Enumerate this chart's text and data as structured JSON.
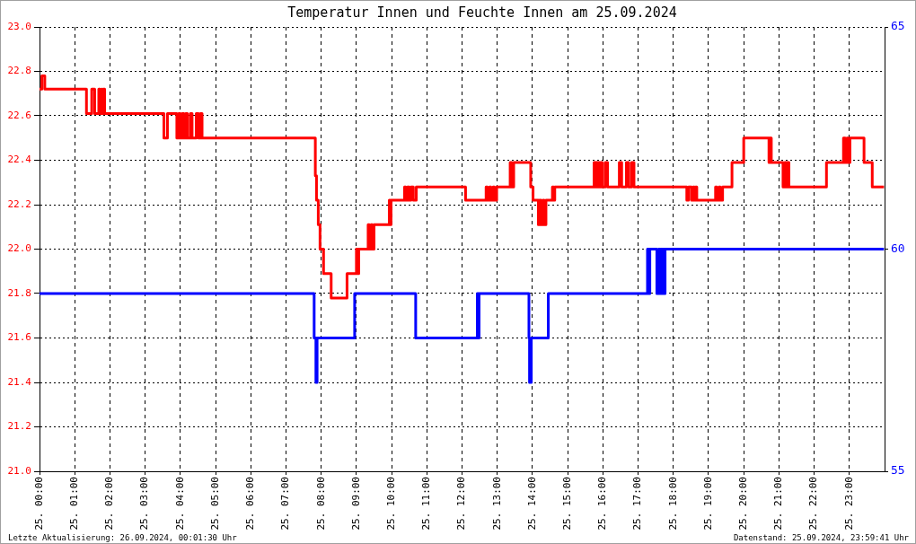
{
  "chart_data": {
    "type": "step",
    "title": "Temperatur Innen und Feuchte Innen am 25.09.2024",
    "series": [
      {
        "color": "#ff0000",
        "x": [
          "2024-09-25T00:00",
          "2024-09-25T00:04",
          "2024-09-25T00:09",
          "2024-09-25T01:20",
          "2024-09-25T01:29",
          "2024-09-25T01:34",
          "2024-09-25T01:41",
          "2024-09-25T01:43",
          "2024-09-25T01:46",
          "2024-09-25T01:47",
          "2024-09-25T01:49",
          "2024-09-25T01:51",
          "2024-09-25T03:32",
          "2024-09-25T03:38",
          "2024-09-25T03:54",
          "2024-09-25T03:57",
          "2024-09-25T04:00",
          "2024-09-25T04:03",
          "2024-09-25T04:06",
          "2024-09-25T04:09",
          "2024-09-25T04:12",
          "2024-09-25T04:17",
          "2024-09-25T04:20",
          "2024-09-25T04:27",
          "2024-09-25T04:31",
          "2024-09-25T04:34",
          "2024-09-25T04:37",
          "2024-09-25T07:50",
          "2024-09-25T07:52",
          "2024-09-25T07:55",
          "2024-09-25T07:58",
          "2024-09-25T08:04",
          "2024-09-25T08:17",
          "2024-09-25T08:44",
          "2024-09-25T09:00",
          "2024-09-25T09:02",
          "2024-09-25T09:04",
          "2024-09-25T09:20",
          "2024-09-25T09:22",
          "2024-09-25T09:25",
          "2024-09-25T09:27",
          "2024-09-25T09:30",
          "2024-09-25T09:56",
          "2024-09-25T09:57",
          "2024-09-25T09:59",
          "2024-09-25T10:22",
          "2024-09-25T10:24",
          "2024-09-25T10:27",
          "2024-09-25T10:30",
          "2024-09-25T10:33",
          "2024-09-25T10:37",
          "2024-09-25T10:42",
          "2024-09-25T12:06",
          "2024-09-25T12:41",
          "2024-09-25T12:43",
          "2024-09-25T12:47",
          "2024-09-25T12:49",
          "2024-09-25T12:53",
          "2024-09-25T12:55",
          "2024-09-25T12:59",
          "2024-09-25T13:22",
          "2024-09-25T13:25",
          "2024-09-25T13:28",
          "2024-09-25T13:57",
          "2024-09-25T14:01",
          "2024-09-25T14:10",
          "2024-09-25T14:12",
          "2024-09-25T14:15",
          "2024-09-25T14:18",
          "2024-09-25T14:20",
          "2024-09-25T14:23",
          "2024-09-25T14:34",
          "2024-09-25T14:36",
          "2024-09-25T14:38",
          "2024-09-25T15:45",
          "2024-09-25T15:47",
          "2024-09-25T15:48",
          "2024-09-25T15:51",
          "2024-09-25T15:53",
          "2024-09-25T15:55",
          "2024-09-25T15:57",
          "2024-09-25T15:59",
          "2024-09-25T16:04",
          "2024-09-25T16:08",
          "2024-09-25T16:28",
          "2024-09-25T16:32",
          "2024-09-25T16:40",
          "2024-09-25T16:44",
          "2024-09-25T16:49",
          "2024-09-25T16:53",
          "2024-09-25T18:23",
          "2024-09-25T18:26",
          "2024-09-25T18:31",
          "2024-09-25T18:34",
          "2024-09-25T18:36",
          "2024-09-25T18:38",
          "2024-09-25T18:40",
          "2024-09-25T19:12",
          "2024-09-25T19:14",
          "2024-09-25T19:18",
          "2024-09-25T19:20",
          "2024-09-25T19:24",
          "2024-09-25T19:40",
          "2024-09-25T20:00",
          "2024-09-25T20:43",
          "2024-09-25T20:44",
          "2024-09-25T20:47",
          "2024-09-25T21:07",
          "2024-09-25T21:10",
          "2024-09-25T21:12",
          "2024-09-25T21:14",
          "2024-09-25T21:17",
          "2024-09-25T22:21",
          "2024-09-25T22:50",
          "2024-09-25T22:53",
          "2024-09-25T22:56",
          "2024-09-25T22:58",
          "2024-09-25T23:01",
          "2024-09-25T23:25",
          "2024-09-25T23:39",
          "2024-09-25T23:59"
        ],
        "values": [
          22.72,
          22.78,
          22.72,
          22.61,
          22.72,
          22.61,
          22.72,
          22.61,
          22.72,
          22.61,
          22.72,
          22.61,
          22.5,
          22.61,
          22.5,
          22.61,
          22.5,
          22.61,
          22.5,
          22.61,
          22.5,
          22.61,
          22.5,
          22.61,
          22.5,
          22.61,
          22.5,
          22.33,
          22.22,
          22.11,
          22.0,
          21.89,
          21.78,
          21.89,
          22.0,
          21.89,
          22.0,
          22.11,
          22.0,
          22.11,
          22.0,
          22.11,
          22.22,
          22.11,
          22.22,
          22.28,
          22.22,
          22.28,
          22.22,
          22.28,
          22.22,
          22.28,
          22.22,
          22.28,
          22.22,
          22.28,
          22.22,
          22.28,
          22.22,
          22.28,
          22.39,
          22.28,
          22.39,
          22.28,
          22.22,
          22.11,
          22.22,
          22.11,
          22.22,
          22.11,
          22.22,
          22.28,
          22.22,
          22.28,
          22.39,
          22.28,
          22.39,
          22.28,
          22.39,
          22.28,
          22.39,
          22.28,
          22.39,
          22.28,
          22.39,
          22.28,
          22.39,
          22.28,
          22.39,
          22.28,
          22.22,
          22.28,
          22.22,
          22.28,
          22.22,
          22.28,
          22.22,
          22.28,
          22.22,
          22.28,
          22.22,
          22.28,
          22.39,
          22.5,
          22.39,
          22.5,
          22.39,
          22.28,
          22.39,
          22.28,
          22.39,
          22.28,
          22.39,
          22.5,
          22.39,
          22.5,
          22.39,
          22.5,
          22.39,
          22.28,
          22.28
        ]
      },
      {
        "color": "#0000ff",
        "axis": "y2",
        "x": [
          "2024-09-25T00:00",
          "2024-09-25T07:48",
          "2024-09-25T07:51",
          "2024-09-25T07:53",
          "2024-09-25T08:57",
          "2024-09-25T10:41",
          "2024-09-25T12:26",
          "2024-09-25T12:28",
          "2024-09-25T12:29",
          "2024-09-25T13:54",
          "2024-09-25T13:55",
          "2024-09-25T13:58",
          "2024-09-25T14:27",
          "2024-09-25T17:16",
          "2024-09-25T17:18",
          "2024-09-25T17:20",
          "2024-09-25T17:32",
          "2024-09-25T17:35",
          "2024-09-25T17:37",
          "2024-09-25T17:39",
          "2024-09-25T17:41",
          "2024-09-25T17:43",
          "2024-09-25T17:44",
          "2024-09-25T17:46",
          "2024-09-25T23:59"
        ],
        "values": [
          59,
          58,
          57,
          58,
          59,
          58,
          59,
          58,
          59,
          58,
          57,
          58,
          59,
          60,
          59,
          60,
          59,
          60,
          59,
          60,
          59,
          60,
          59,
          60,
          60
        ]
      }
    ],
    "xlim": [
      "2024-09-25T00:00",
      "2024-09-26T00:00"
    ],
    "xticks": [
      {
        "value": "2024-09-25T00:00",
        "label": "25. 00:00"
      },
      {
        "value": "2024-09-25T01:00",
        "label": "25. 01:00"
      },
      {
        "value": "2024-09-25T02:00",
        "label": "25. 02:00"
      },
      {
        "value": "2024-09-25T03:00",
        "label": "25. 03:00"
      },
      {
        "value": "2024-09-25T04:00",
        "label": "25. 04:00"
      },
      {
        "value": "2024-09-25T05:00",
        "label": "25. 05:00"
      },
      {
        "value": "2024-09-25T06:00",
        "label": "25. 06:00"
      },
      {
        "value": "2024-09-25T07:00",
        "label": "25. 07:00"
      },
      {
        "value": "2024-09-25T08:00",
        "label": "25. 08:00"
      },
      {
        "value": "2024-09-25T09:00",
        "label": "25. 09:00"
      },
      {
        "value": "2024-09-25T10:00",
        "label": "25. 10:00"
      },
      {
        "value": "2024-09-25T11:00",
        "label": "25. 11:00"
      },
      {
        "value": "2024-09-25T12:00",
        "label": "25. 12:00"
      },
      {
        "value": "2024-09-25T13:00",
        "label": "25. 13:00"
      },
      {
        "value": "2024-09-25T14:00",
        "label": "25. 14:00"
      },
      {
        "value": "2024-09-25T15:00",
        "label": "25. 15:00"
      },
      {
        "value": "2024-09-25T16:00",
        "label": "25. 16:00"
      },
      {
        "value": "2024-09-25T17:00",
        "label": "25. 17:00"
      },
      {
        "value": "2024-09-25T18:00",
        "label": "25. 18:00"
      },
      {
        "value": "2024-09-25T19:00",
        "label": "25. 19:00"
      },
      {
        "value": "2024-09-25T20:00",
        "label": "25. 20:00"
      },
      {
        "value": "2024-09-25T21:00",
        "label": "25. 21:00"
      },
      {
        "value": "2024-09-25T22:00",
        "label": "25. 22:00"
      },
      {
        "value": "2024-09-25T23:00",
        "label": "25. 23:00"
      }
    ],
    "ylim": [
      21,
      23
    ],
    "yticks": [
      {
        "value": 21,
        "label": "21.0"
      },
      21.2,
      21.4,
      21.6,
      21.8,
      {
        "value": 22,
        "label": "22.0"
      },
      22.2,
      22.4,
      22.6,
      22.8,
      {
        "value": 23,
        "label": "23.0"
      }
    ],
    "y2lim": [
      55,
      65
    ],
    "y2ticks": [
      55,
      60,
      65
    ],
    "grid": true,
    "marker": "none",
    "annotations": [
      "Letzte Aktualisierung: 26.09.2024, 00:01:30 Uhr",
      "Datenstand: 25.09.2024, 23:59:41 Uhr"
    ]
  }
}
